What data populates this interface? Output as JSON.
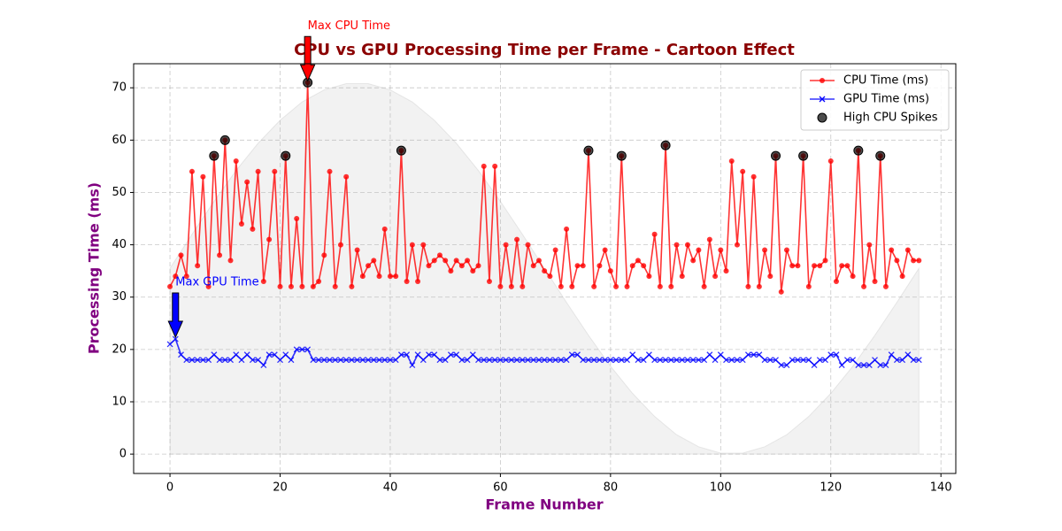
{
  "chart_data": {
    "type": "line",
    "title": "CPU vs GPU Processing Time per Frame - Cartoon Effect",
    "title_color": "#8b0000",
    "xlabel": "Frame Number",
    "ylabel": "Processing Time (ms)",
    "axis_label_color": "#800080",
    "xlim": [
      -6.6,
      142.7
    ],
    "ylim": [
      -3.7,
      74.6
    ],
    "xticks": [
      0,
      20,
      40,
      60,
      80,
      100,
      120,
      140
    ],
    "yticks": [
      0,
      10,
      20,
      30,
      40,
      50,
      60,
      70
    ],
    "grid": true,
    "legend": "upper right",
    "x": [
      0,
      1,
      2,
      3,
      4,
      5,
      6,
      7,
      8,
      9,
      10,
      11,
      12,
      13,
      14,
      15,
      16,
      17,
      18,
      19,
      20,
      21,
      22,
      23,
      24,
      25,
      26,
      27,
      28,
      29,
      30,
      31,
      32,
      33,
      34,
      35,
      36,
      37,
      38,
      39,
      40,
      41,
      42,
      43,
      44,
      45,
      46,
      47,
      48,
      49,
      50,
      51,
      52,
      53,
      54,
      55,
      56,
      57,
      58,
      59,
      60,
      61,
      62,
      63,
      64,
      65,
      66,
      67,
      68,
      69,
      70,
      71,
      72,
      73,
      74,
      75,
      76,
      77,
      78,
      79,
      80,
      81,
      82,
      83,
      84,
      85,
      86,
      87,
      88,
      89,
      90,
      91,
      92,
      93,
      94,
      95,
      96,
      97,
      98,
      99,
      100,
      101,
      102,
      103,
      104,
      105,
      106,
      107,
      108,
      109,
      110,
      111,
      112,
      113,
      114,
      115,
      116,
      117,
      118,
      119,
      120,
      121,
      122,
      123,
      124,
      125,
      126,
      127,
      128,
      129,
      130,
      131,
      132,
      133,
      134,
      135,
      136
    ],
    "background_fill": {
      "color": "#d3d3d3",
      "x": [
        0,
        4,
        8,
        12,
        16,
        20,
        24,
        28,
        32,
        36,
        40,
        44,
        48,
        52,
        56,
        60,
        64,
        68,
        72,
        76,
        80,
        84,
        88,
        92,
        96,
        100,
        104,
        108,
        112,
        116,
        120,
        124,
        128,
        132,
        136
      ],
      "values": [
        35.5,
        42.0,
        48.3,
        54.2,
        59.4,
        63.8,
        67.3,
        69.6,
        70.8,
        70.8,
        69.6,
        67.3,
        63.8,
        59.4,
        54.2,
        48.3,
        42.0,
        35.5,
        29.0,
        22.7,
        16.8,
        11.6,
        7.2,
        3.7,
        1.4,
        0.2,
        0.2,
        1.4,
        3.7,
        7.2,
        11.6,
        16.8,
        22.7,
        29.0,
        35.5
      ]
    },
    "series": [
      {
        "name": "CPU Time (ms)",
        "color": "red",
        "marker": "circle",
        "values": [
          32,
          34,
          38,
          34,
          54,
          36,
          53,
          32,
          57,
          38,
          60,
          37,
          56,
          44,
          52,
          43,
          54,
          33,
          41,
          54,
          32,
          57,
          32,
          45,
          32,
          71,
          32,
          33,
          38,
          54,
          32,
          40,
          53,
          32,
          39,
          34,
          36,
          37,
          34,
          43,
          34,
          34,
          58,
          33,
          40,
          33,
          40,
          36,
          37,
          38,
          37,
          35,
          37,
          36,
          37,
          35,
          36,
          55,
          33,
          55,
          32,
          40,
          32,
          41,
          32,
          40,
          36,
          37,
          35,
          34,
          39,
          32,
          43,
          32,
          36,
          36,
          58,
          32,
          36,
          39,
          35,
          32,
          57,
          32,
          36,
          37,
          36,
          34,
          42,
          32,
          59,
          32,
          40,
          34,
          40,
          37,
          39,
          32,
          41,
          34,
          39,
          35,
          56,
          40,
          54,
          32,
          53,
          32,
          39,
          34,
          57,
          31,
          39,
          36,
          36,
          57,
          32,
          36,
          36,
          37,
          56,
          33,
          36,
          36,
          34,
          58,
          32,
          40,
          33,
          57,
          32,
          39,
          37,
          34,
          39,
          37,
          37
        ]
      },
      {
        "name": "GPU Time (ms)",
        "color": "blue",
        "marker": "x",
        "values": [
          21,
          22,
          19,
          18,
          18,
          18,
          18,
          18,
          19,
          18,
          18,
          18,
          19,
          18,
          19,
          18,
          18,
          17,
          19,
          19,
          18,
          19,
          18,
          20,
          20,
          20,
          18,
          18,
          18,
          18,
          18,
          18,
          18,
          18,
          18,
          18,
          18,
          18,
          18,
          18,
          18,
          18,
          19,
          19,
          17,
          19,
          18,
          19,
          19,
          18,
          18,
          19,
          19,
          18,
          18,
          19,
          18,
          18,
          18,
          18,
          18,
          18,
          18,
          18,
          18,
          18,
          18,
          18,
          18,
          18,
          18,
          18,
          18,
          19,
          19,
          18,
          18,
          18,
          18,
          18,
          18,
          18,
          18,
          18,
          19,
          18,
          18,
          19,
          18,
          18,
          18,
          18,
          18,
          18,
          18,
          18,
          18,
          18,
          19,
          18,
          19,
          18,
          18,
          18,
          18,
          19,
          19,
          19,
          18,
          18,
          18,
          17,
          17,
          18,
          18,
          18,
          18,
          17,
          18,
          18,
          19,
          19,
          17,
          18,
          18,
          17,
          17,
          17,
          18,
          17,
          17,
          19,
          18,
          18,
          19,
          18,
          18
        ]
      },
      {
        "name": "High CPU Spikes",
        "type": "scatter",
        "color": "black",
        "x": [
          8,
          10,
          21,
          25,
          42,
          76,
          82,
          90,
          110,
          115,
          125,
          129
        ],
        "values": [
          57,
          60,
          57,
          71,
          58,
          58,
          57,
          59,
          57,
          57,
          58,
          57
        ]
      }
    ],
    "annotations": [
      {
        "text": "Max CPU Time",
        "x": 25,
        "y": 71,
        "color": "red"
      },
      {
        "text": "Max GPU Time",
        "x": 1,
        "y": 22,
        "color": "blue"
      }
    ]
  }
}
